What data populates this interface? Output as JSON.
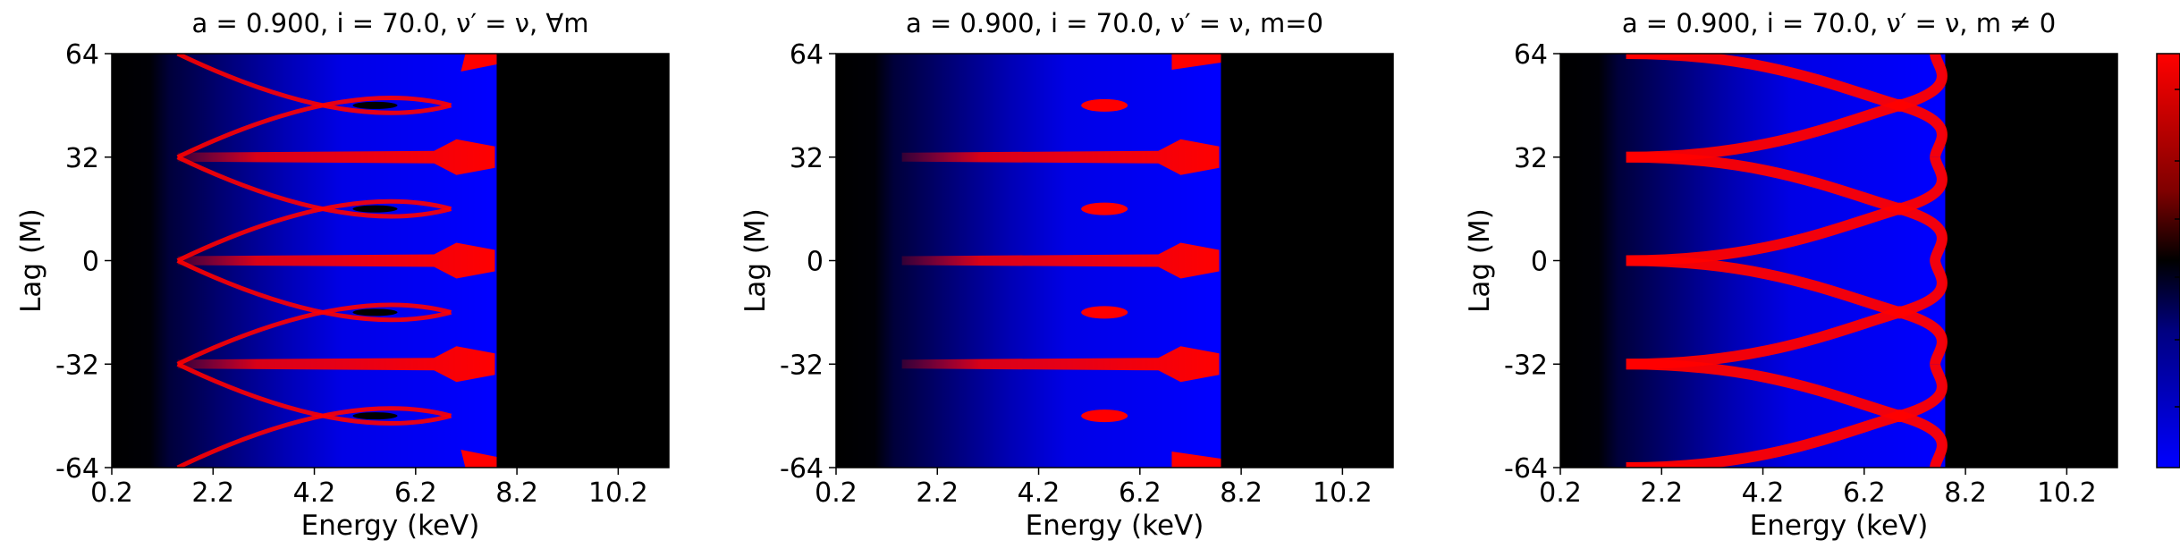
{
  "colors": {
    "background_low": "#0000ff",
    "background_dark": "#000000",
    "feature": "#ff0000"
  },
  "chart_data": [
    {
      "type": "heatmap",
      "title": "a = 0.900, i = 70.0, ν′ = ν, ∀m",
      "xlabel": "Energy (keV)",
      "ylabel": "Lag (M)",
      "xlim": [
        0.2,
        11.2
      ],
      "ylim": [
        -64,
        64
      ],
      "xticks": [
        "0.2",
        "2.2",
        "4.2",
        "6.2",
        "8.2",
        "10.2"
      ],
      "yticks": [
        "64",
        "32",
        "0",
        "-32",
        "-64"
      ],
      "tick_values_x": [
        0.2,
        2.2,
        4.2,
        6.2,
        8.2,
        10.2
      ],
      "tick_values_y": [
        64,
        32,
        0,
        -32,
        -64
      ],
      "energy_cutoff_keV": 7.8,
      "red_bands_lag": [
        -32,
        0,
        32
      ]
    },
    {
      "type": "heatmap",
      "title": "a = 0.900, i = 70.0, ν′ = ν, m=0",
      "xlabel": "Energy (keV)",
      "ylabel": "Lag (M)",
      "xlim": [
        0.2,
        11.2
      ],
      "ylim": [
        -64,
        64
      ],
      "xticks": [
        "0.2",
        "2.2",
        "4.2",
        "6.2",
        "8.2",
        "10.2"
      ],
      "yticks": [
        "64",
        "32",
        "0",
        "-32",
        "-64"
      ],
      "tick_values_x": [
        0.2,
        2.2,
        4.2,
        6.2,
        8.2,
        10.2
      ],
      "tick_values_y": [
        64,
        32,
        0,
        -32,
        -64
      ],
      "energy_cutoff_keV": 7.8,
      "red_bands_lag": [
        -32,
        0,
        32
      ]
    },
    {
      "type": "heatmap",
      "title": "a = 0.900, i = 70.0, ν′ = ν, m ≠ 0",
      "xlabel": "Energy (keV)",
      "ylabel": "Lag (M)",
      "xlim": [
        0.2,
        11.2
      ],
      "ylim": [
        -64,
        64
      ],
      "xticks": [
        "0.2",
        "2.2",
        "4.2",
        "6.2",
        "8.2",
        "10.2"
      ],
      "yticks": [
        "64",
        "32",
        "0",
        "-32",
        "-64"
      ],
      "tick_values_x": [
        0.2,
        2.2,
        4.2,
        6.2,
        8.2,
        10.2
      ],
      "tick_values_y": [
        64,
        32,
        0,
        -32,
        -64
      ],
      "energy_cutoff_keV": 7.8,
      "crossing_lags": [
        -48,
        -16,
        16,
        48
      ]
    }
  ]
}
